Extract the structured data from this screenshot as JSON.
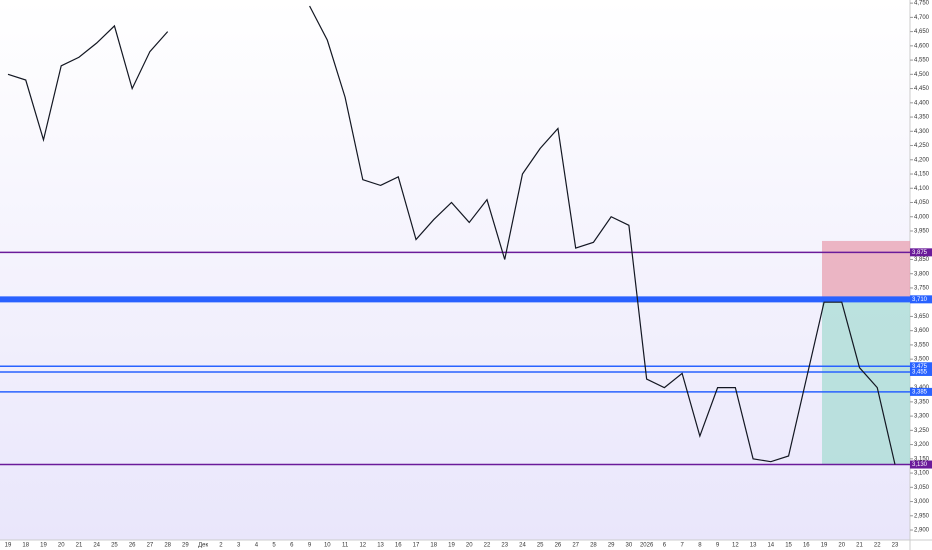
{
  "chart_data": {
    "type": "line",
    "categories": [
      "19",
      "18",
      "19",
      "20",
      "21",
      "24",
      "25",
      "26",
      "27",
      "28",
      "29",
      "Дек",
      "2",
      "3",
      "4",
      "5",
      "6",
      "9",
      "10",
      "11",
      "12",
      "13",
      "16",
      "17",
      "18",
      "19",
      "20",
      "22",
      "23",
      "24",
      "25",
      "26",
      "27",
      "28",
      "29",
      "30",
      "2026",
      "6",
      "7",
      "8",
      "9",
      "12",
      "13",
      "14",
      "15",
      "16",
      "19",
      "20",
      "21",
      "22",
      "23"
    ],
    "series": [
      {
        "color": "#131722",
        "values": [
          4.5,
          4.48,
          4.27,
          4.53,
          4.56,
          4.61,
          4.67,
          4.45,
          4.58,
          4.65,
          null,
          null,
          null,
          null,
          null,
          null,
          null,
          4.74,
          4.62,
          4.42,
          4.13,
          4.11,
          4.14,
          3.92,
          3.99,
          4.05,
          3.98,
          4.06,
          3.85,
          4.15,
          4.24,
          4.31,
          3.89,
          3.91,
          4.0,
          3.97,
          3.43,
          3.4,
          3.45,
          3.23,
          3.4,
          3.4,
          3.15,
          3.14,
          3.16,
          3.43,
          3.7,
          3.7,
          3.47,
          3.4,
          3.13
        ]
      }
    ],
    "ylim": [
      2.865,
      4.761
    ],
    "yticks": [
      {
        "value": 2.9,
        "label": "2,900"
      },
      {
        "value": 2.95,
        "label": "2,950"
      },
      {
        "value": 3.0,
        "label": "3,000"
      },
      {
        "value": 3.05,
        "label": "3,050"
      },
      {
        "value": 3.1,
        "label": "3,100"
      },
      {
        "value": 3.15,
        "label": "3,150"
      },
      {
        "value": 3.2,
        "label": "3,200"
      },
      {
        "value": 3.25,
        "label": "3,250"
      },
      {
        "value": 3.3,
        "label": "3,300"
      },
      {
        "value": 3.35,
        "label": "3,350"
      },
      {
        "value": 3.4,
        "label": "3,400"
      },
      {
        "value": 3.5,
        "label": "3,500"
      },
      {
        "value": 3.55,
        "label": "3,550"
      },
      {
        "value": 3.6,
        "label": "3,600"
      },
      {
        "value": 3.65,
        "label": "3,650"
      },
      {
        "value": 3.75,
        "label": "3,750"
      },
      {
        "value": 3.8,
        "label": "3,800"
      },
      {
        "value": 3.85,
        "label": "3,850"
      },
      {
        "value": 3.95,
        "label": "3,950"
      },
      {
        "value": 4.0,
        "label": "4,000"
      },
      {
        "value": 4.05,
        "label": "4,050"
      },
      {
        "value": 4.1,
        "label": "4,100"
      },
      {
        "value": 4.15,
        "label": "4,150"
      },
      {
        "value": 4.2,
        "label": "4,200"
      },
      {
        "value": 4.25,
        "label": "4,250"
      },
      {
        "value": 4.3,
        "label": "4,300"
      },
      {
        "value": 4.35,
        "label": "4,350"
      },
      {
        "value": 4.4,
        "label": "4,400"
      },
      {
        "value": 4.45,
        "label": "4,450"
      },
      {
        "value": 4.5,
        "label": "4,500"
      },
      {
        "value": 4.55,
        "label": "4,550"
      },
      {
        "value": 4.6,
        "label": "4,600"
      },
      {
        "value": 4.65,
        "label": "4,650"
      },
      {
        "value": 4.7,
        "label": "4,700"
      },
      {
        "value": 4.75,
        "label": "4,750"
      }
    ],
    "levels": [
      {
        "value": 3.875,
        "label": "3,875",
        "color": "#6a1b9a",
        "width": 1.5
      },
      {
        "value": 3.71,
        "label": "3,710",
        "color": "#2962ff",
        "width": 6
      },
      {
        "value": 3.475,
        "label": "3,475",
        "color": "#2962ff",
        "width": 1.5
      },
      {
        "value": 3.455,
        "label": "3,455",
        "color": "#2962ff",
        "width": 1.5
      },
      {
        "value": 3.385,
        "label": "3,385",
        "color": "#2962ff",
        "width": 1.5
      },
      {
        "value": 3.13,
        "label": "3,130",
        "color": "#6a1b9a",
        "width": 1.5
      }
    ],
    "position": {
      "entry": 3.71,
      "stop": 3.915,
      "target": 3.13,
      "stop_color": "#e8a0b0",
      "target_color": "#a8dcd4"
    }
  }
}
